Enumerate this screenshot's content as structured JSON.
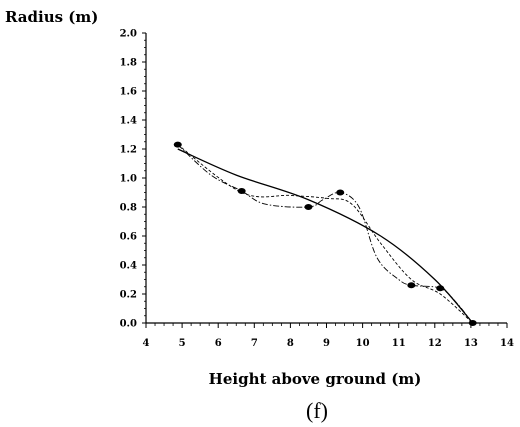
{
  "chart_data": {
    "type": "scatter",
    "title": "",
    "xlabel": "Height above ground (m)",
    "ylabel": "Radius (m)",
    "caption": "(f)",
    "xlim": [
      4,
      14
    ],
    "ylim": [
      0,
      2.0
    ],
    "x_ticks": [
      4,
      5,
      6,
      7,
      8,
      9,
      10,
      11,
      12,
      13,
      14
    ],
    "y_ticks": [
      "0.0",
      "0.2",
      "0.4",
      "0.6",
      "0.8",
      "1.0",
      "1.2",
      "1.4",
      "1.6",
      "1.8",
      "2.0"
    ],
    "grid": false,
    "points": {
      "x": [
        4.88,
        6.65,
        8.5,
        9.38,
        11.35,
        12.15,
        13.05
      ],
      "y": [
        1.23,
        0.91,
        0.8,
        0.9,
        0.26,
        0.24,
        0.0
      ]
    },
    "series": [
      {
        "style": "solid",
        "x": [
          4.88,
          6.5,
          8.5,
          10.5,
          12.0,
          13.05
        ],
        "y": [
          1.2,
          1.02,
          0.85,
          0.6,
          0.3,
          0.0
        ]
      },
      {
        "style": "dashed",
        "x": [
          4.88,
          6.65,
          8.0,
          9.0,
          9.7,
          10.5,
          11.35,
          12.15,
          13.05
        ],
        "y": [
          1.23,
          0.9,
          0.88,
          0.86,
          0.82,
          0.55,
          0.3,
          0.2,
          0.0
        ]
      },
      {
        "style": "dashdot",
        "x": [
          4.88,
          5.8,
          6.65,
          7.3,
          8.5,
          8.9,
          9.38,
          9.9,
          10.4,
          11.0,
          11.35,
          12.15,
          12.6,
          13.05
        ],
        "y": [
          1.23,
          1.02,
          0.91,
          0.82,
          0.8,
          0.85,
          0.9,
          0.8,
          0.45,
          0.3,
          0.26,
          0.24,
          0.14,
          0.0
        ]
      }
    ]
  }
}
